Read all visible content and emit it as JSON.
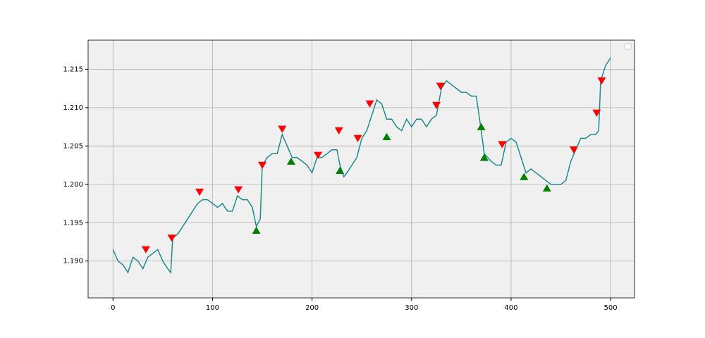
{
  "chart_data": {
    "type": "line",
    "xlim": [
      -25,
      524
    ],
    "xticks": [
      0,
      100,
      200,
      300,
      400,
      500
    ],
    "ylim": [
      1.1852,
      1.2188
    ],
    "yticks": [
      {
        "value": 1.19,
        "label": "1.190"
      },
      1.195,
      {
        "value": 1.2,
        "label": "1.200"
      },
      1.205,
      {
        "value": 1.21,
        "label": "1.210"
      },
      1.215
    ],
    "grid": true,
    "legend": "upper right",
    "series": [
      {
        "color": "#1f8a8a",
        "x": [
          0,
          5,
          10,
          15,
          20,
          25,
          30,
          35,
          40,
          45,
          50,
          55,
          58,
          60,
          65,
          70,
          75,
          80,
          85,
          90,
          95,
          100,
          105,
          110,
          115,
          120,
          125,
          130,
          135,
          140,
          144,
          148,
          150,
          155,
          160,
          165,
          170,
          175,
          180,
          185,
          190,
          195,
          200,
          205,
          210,
          215,
          220,
          225,
          228,
          232,
          235,
          240,
          245,
          250,
          255,
          260,
          265,
          270,
          275,
          280,
          285,
          290,
          295,
          300,
          305,
          310,
          315,
          320,
          325,
          330,
          335,
          340,
          345,
          350,
          355,
          360,
          365,
          370,
          373,
          380,
          385,
          390,
          395,
          400,
          405,
          410,
          415,
          420,
          425,
          430,
          435,
          440,
          445,
          450,
          455,
          460,
          465,
          470,
          475,
          480,
          485,
          488,
          490,
          495,
          500
        ],
        "values": [
          1.1915,
          1.19,
          1.1895,
          1.1885,
          1.1905,
          1.19,
          1.189,
          1.1905,
          1.191,
          1.1915,
          1.19,
          1.189,
          1.1885,
          1.193,
          1.1935,
          1.1945,
          1.1955,
          1.1965,
          1.1975,
          1.198,
          1.198,
          1.1975,
          1.197,
          1.1975,
          1.1965,
          1.1965,
          1.1985,
          1.198,
          1.198,
          1.197,
          1.1945,
          1.1955,
          1.2025,
          1.2035,
          1.204,
          1.204,
          1.2065,
          1.205,
          1.2035,
          1.2035,
          1.203,
          1.2025,
          1.2015,
          1.2035,
          1.2035,
          1.204,
          1.2045,
          1.2045,
          1.2025,
          1.201,
          1.2015,
          1.2025,
          1.2035,
          1.206,
          1.207,
          1.209,
          1.211,
          1.2105,
          1.2085,
          1.2085,
          1.2075,
          1.207,
          1.2085,
          1.2075,
          1.2085,
          1.2085,
          1.2075,
          1.2085,
          1.209,
          1.2125,
          1.2135,
          1.213,
          1.2125,
          1.212,
          1.212,
          1.2115,
          1.2115,
          1.207,
          1.204,
          1.203,
          1.2025,
          1.2025,
          1.2055,
          1.206,
          1.2055,
          1.2035,
          1.2015,
          1.202,
          1.2015,
          1.201,
          1.2005,
          1.2,
          1.2,
          1.2,
          1.2005,
          1.203,
          1.2045,
          1.206,
          1.206,
          1.2065,
          1.2065,
          1.207,
          1.2135,
          1.2155,
          1.2165
        ]
      },
      {
        "color": "#ff0000",
        "marker": "v",
        "x": [
          33,
          59,
          87,
          126,
          150,
          170,
          206,
          227,
          246,
          258,
          325,
          329,
          391,
          463,
          486,
          491
        ],
        "values": [
          1.1915,
          1.193,
          1.199,
          1.1993,
          1.2025,
          1.2072,
          1.2038,
          1.207,
          1.206,
          1.2105,
          1.2103,
          1.2128,
          1.2052,
          1.2045,
          1.2093,
          1.2135
        ]
      },
      {
        "color": "#008000",
        "marker": "^",
        "x": [
          144,
          179,
          228,
          275,
          370,
          373,
          413,
          436
        ],
        "values": [
          1.194,
          1.203,
          1.2018,
          1.2062,
          1.2075,
          1.2035,
          1.201,
          1.1995
        ]
      }
    ]
  }
}
